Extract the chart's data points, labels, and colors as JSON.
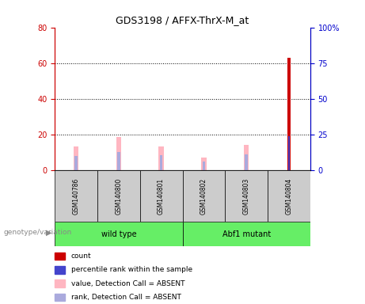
{
  "title": "GDS3198 / AFFX-ThrX-M_at",
  "samples": [
    "GSM140786",
    "GSM140800",
    "GSM140801",
    "GSM140802",
    "GSM140803",
    "GSM140804"
  ],
  "left_ylim": [
    0,
    80
  ],
  "right_ylim": [
    0,
    100
  ],
  "left_yticks": [
    0,
    20,
    40,
    60,
    80
  ],
  "right_yticks": [
    0,
    25,
    50,
    75,
    100
  ],
  "right_yticklabels": [
    "0",
    "25",
    "50",
    "75",
    "100%"
  ],
  "left_tick_color": "#CC0000",
  "right_tick_color": "#0000CC",
  "bar_data": {
    "GSM140786": {
      "value_absent": 13.5,
      "rank_absent": 8.0,
      "count": 0,
      "percentile": 0
    },
    "GSM140800": {
      "value_absent": 18.5,
      "rank_absent": 10.0,
      "count": 0,
      "percentile": 0
    },
    "GSM140801": {
      "value_absent": 13.5,
      "rank_absent": 8.5,
      "count": 0,
      "percentile": 0
    },
    "GSM140802": {
      "value_absent": 7.0,
      "rank_absent": 5.0,
      "count": 0,
      "percentile": 0
    },
    "GSM140803": {
      "value_absent": 14.0,
      "rank_absent": 9.0,
      "count": 0,
      "percentile": 0
    },
    "GSM140804": {
      "value_absent": 0,
      "rank_absent": 0,
      "count": 63,
      "percentile": 24
    }
  },
  "color_count": "#CC0000",
  "color_percentile": "#4444CC",
  "color_value_absent": "#FFB6C1",
  "color_rank_absent": "#AAAADD",
  "legend_items": [
    {
      "color": "#CC0000",
      "label": "count"
    },
    {
      "color": "#4444CC",
      "label": "percentile rank within the sample"
    },
    {
      "color": "#FFB6C1",
      "label": "value, Detection Call = ABSENT"
    },
    {
      "color": "#AAAADD",
      "label": "rank, Detection Call = ABSENT"
    }
  ],
  "genotype_label": "genotype/variation",
  "sample_bg_color": "#CCCCCC",
  "group_bg_color": "#66EE66",
  "wt_label": "wild type",
  "mut_label": "Abf1 mutant"
}
